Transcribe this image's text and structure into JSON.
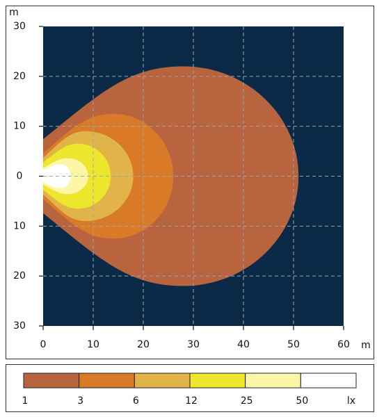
{
  "chart_data": {
    "type": "isolux",
    "x_unit": "m",
    "y_unit": "m",
    "legend_unit": "lx",
    "xlim": [
      0,
      60
    ],
    "xticks": [
      0,
      10,
      20,
      30,
      40,
      50,
      60
    ],
    "ylim": [
      -30,
      30
    ],
    "yticks": [
      30,
      20,
      10,
      0,
      {
        "value": -10,
        "label": "10"
      },
      {
        "value": -20,
        "label": "20"
      },
      {
        "value": -30,
        "label": "30"
      }
    ],
    "grid": true,
    "background": "#0b2a47",
    "levels": [
      1,
      3,
      6,
      12,
      25,
      50
    ],
    "colors": [
      "#b8643e",
      "#d87a27",
      "#e0b449",
      "#ece62d",
      "#fdf5a8",
      "#ffffff"
    ],
    "reach": [
      51,
      26,
      18,
      13.5,
      9,
      5.5
    ],
    "half_width": [
      22,
      12.5,
      9,
      6.5,
      3.6,
      2.4
    ],
    "peak_x": [
      28,
      14,
      8.5,
      7,
      5,
      3.5
    ]
  }
}
